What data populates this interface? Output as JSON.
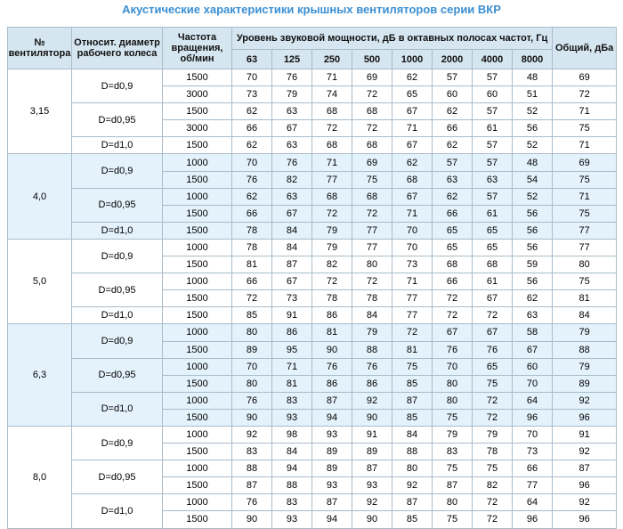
{
  "title": "Акустические характеристики крышных вентиляторов серии ВКР",
  "header": {
    "fan_no": "№ вентилятора",
    "diameter": "Относит. диаметр рабочего колеса",
    "speed": "Частота вращения, об/мин",
    "levels": "Уровень звуковой мощности, дБ в октавных полосах частот, Гц",
    "frequencies": [
      63,
      125,
      250,
      500,
      1000,
      2000,
      4000,
      8000
    ],
    "total": "Общий, дБа"
  },
  "groups": [
    {
      "label": "3,15",
      "subgroups": [
        {
          "label": "D=d0,9",
          "rows": [
            {
              "speed": 1500,
              "levels": [
                70,
                76,
                71,
                69,
                62,
                57,
                57,
                48
              ],
              "total": 69
            },
            {
              "speed": 3000,
              "levels": [
                73,
                79,
                74,
                72,
                65,
                60,
                60,
                51
              ],
              "total": 72
            }
          ]
        },
        {
          "label": "D=d0,95",
          "rows": [
            {
              "speed": 1500,
              "levels": [
                62,
                63,
                68,
                68,
                67,
                62,
                57,
                52
              ],
              "total": 71
            },
            {
              "speed": 3000,
              "levels": [
                66,
                67,
                72,
                72,
                71,
                66,
                61,
                56
              ],
              "total": 75
            }
          ]
        },
        {
          "label": "D=d1,0",
          "rows": [
            {
              "speed": 1500,
              "levels": [
                62,
                63,
                68,
                68,
                67,
                62,
                57,
                52
              ],
              "total": 71
            }
          ]
        }
      ]
    },
    {
      "label": "4,0",
      "subgroups": [
        {
          "label": "D=d0,9",
          "rows": [
            {
              "speed": 1000,
              "levels": [
                70,
                76,
                71,
                69,
                62,
                57,
                57,
                48
              ],
              "total": 69
            },
            {
              "speed": 1500,
              "levels": [
                76,
                82,
                77,
                75,
                68,
                63,
                63,
                54
              ],
              "total": 75
            }
          ]
        },
        {
          "label": "D=d0,95",
          "rows": [
            {
              "speed": 1000,
              "levels": [
                62,
                63,
                68,
                68,
                67,
                62,
                57,
                52
              ],
              "total": 71
            },
            {
              "speed": 1500,
              "levels": [
                66,
                67,
                72,
                72,
                71,
                66,
                61,
                56
              ],
              "total": 75
            }
          ]
        },
        {
          "label": "D=d1,0",
          "rows": [
            {
              "speed": 1500,
              "levels": [
                78,
                84,
                79,
                77,
                70,
                65,
                65,
                56
              ],
              "total": 77
            }
          ]
        }
      ]
    },
    {
      "label": "5,0",
      "subgroups": [
        {
          "label": "D=d0,9",
          "rows": [
            {
              "speed": 1000,
              "levels": [
                78,
                84,
                79,
                77,
                70,
                65,
                65,
                56
              ],
              "total": 77
            },
            {
              "speed": 1500,
              "levels": [
                81,
                87,
                82,
                80,
                73,
                68,
                68,
                59
              ],
              "total": 80
            }
          ]
        },
        {
          "label": "D=d0,95",
          "rows": [
            {
              "speed": 1000,
              "levels": [
                66,
                67,
                72,
                72,
                71,
                66,
                61,
                56
              ],
              "total": 75
            },
            {
              "speed": 1500,
              "levels": [
                72,
                73,
                78,
                78,
                77,
                72,
                67,
                62
              ],
              "total": 81
            }
          ]
        },
        {
          "label": "D=d1,0",
          "rows": [
            {
              "speed": 1500,
              "levels": [
                85,
                91,
                86,
                84,
                77,
                72,
                72,
                63
              ],
              "total": 84
            }
          ]
        }
      ]
    },
    {
      "label": "6,3",
      "subgroups": [
        {
          "label": "D=d0,9",
          "rows": [
            {
              "speed": 1000,
              "levels": [
                80,
                86,
                81,
                79,
                72,
                67,
                67,
                58
              ],
              "total": 79
            },
            {
              "speed": 1500,
              "levels": [
                89,
                95,
                90,
                88,
                81,
                76,
                76,
                67
              ],
              "total": 88
            }
          ]
        },
        {
          "label": "D=d0,95",
          "rows": [
            {
              "speed": 1000,
              "levels": [
                70,
                71,
                76,
                76,
                75,
                70,
                65,
                60
              ],
              "total": 79
            },
            {
              "speed": 1500,
              "levels": [
                80,
                81,
                86,
                86,
                85,
                80,
                75,
                70
              ],
              "total": 89
            }
          ]
        },
        {
          "label": "D=d1,0",
          "rows": [
            {
              "speed": 1000,
              "levels": [
                76,
                83,
                87,
                92,
                87,
                80,
                72,
                64
              ],
              "total": 92
            },
            {
              "speed": 1500,
              "levels": [
                90,
                93,
                94,
                90,
                85,
                75,
                72,
                96
              ],
              "total": 96
            }
          ]
        }
      ]
    },
    {
      "label": "8,0",
      "subgroups": [
        {
          "label": "D=d0,9",
          "rows": [
            {
              "speed": 1000,
              "levels": [
                92,
                98,
                93,
                91,
                84,
                79,
                79,
                70
              ],
              "total": 91
            },
            {
              "speed": 1500,
              "levels": [
                83,
                84,
                89,
                89,
                88,
                83,
                78,
                73
              ],
              "total": 92
            }
          ]
        },
        {
          "label": "D=d0,95",
          "rows": [
            {
              "speed": 1000,
              "levels": [
                88,
                94,
                89,
                87,
                80,
                75,
                75,
                66
              ],
              "total": 87
            },
            {
              "speed": 1500,
              "levels": [
                87,
                88,
                93,
                93,
                92,
                87,
                82,
                77
              ],
              "total": 96
            }
          ]
        },
        {
          "label": "D=d1,0",
          "rows": [
            {
              "speed": 1000,
              "levels": [
                76,
                83,
                87,
                92,
                87,
                80,
                72,
                64
              ],
              "total": 92
            },
            {
              "speed": 1500,
              "levels": [
                90,
                93,
                94,
                90,
                85,
                75,
                72,
                96
              ],
              "total": 96
            }
          ]
        }
      ]
    }
  ]
}
